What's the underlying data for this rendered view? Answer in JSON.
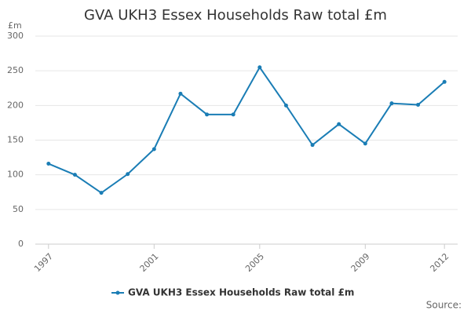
{
  "chart_data": {
    "type": "line",
    "title": "GVA UKH3 Essex Households Raw total £m",
    "y_label": "£m",
    "source": "Source:",
    "x": [
      1997,
      1998,
      1999,
      2000,
      2001,
      2002,
      2003,
      2004,
      2005,
      2006,
      2007,
      2008,
      2009,
      2010,
      2011,
      2012
    ],
    "series": [
      {
        "name": "GVA UKH3 Essex Households Raw total £m",
        "color": "#1a7db5",
        "values": [
          116,
          100,
          74,
          101,
          137,
          217,
          187,
          187,
          255,
          200,
          143,
          173,
          145,
          203,
          201,
          234
        ]
      }
    ],
    "xlim": [
      1996.5,
      2012.5
    ],
    "xticks": [
      1997,
      2001,
      2005,
      2009,
      2012
    ],
    "ylim": [
      0,
      300
    ],
    "yticks": [
      0,
      50,
      100,
      150,
      200,
      250,
      300
    ],
    "grid": true
  }
}
